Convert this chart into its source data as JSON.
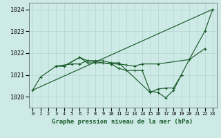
{
  "title": "Graphe pression niveau de la mer (hPa)",
  "bg_color": "#ceeae6",
  "grid_color": "#b8d8d4",
  "line_color": "#1a5c2a",
  "x_labels": [
    "0",
    "1",
    "2",
    "3",
    "4",
    "5",
    "6",
    "7",
    "8",
    "9",
    "10",
    "11",
    "12",
    "13",
    "14",
    "15",
    "16",
    "17",
    "18",
    "19",
    "20",
    "21",
    "22",
    "23"
  ],
  "ylim": [
    1019.5,
    1024.3
  ],
  "yticks": [
    1020,
    1021,
    1022,
    1023,
    1024
  ],
  "hours_line1": [
    0,
    1,
    3,
    4,
    6,
    7,
    10,
    11,
    12,
    13,
    14,
    16,
    20,
    22,
    23
  ],
  "vals_line1": [
    1020.3,
    1020.9,
    1021.4,
    1021.4,
    1021.8,
    1021.65,
    1021.5,
    1021.5,
    1021.45,
    1021.4,
    1021.5,
    1021.5,
    1021.7,
    1023.0,
    1024.0
  ],
  "hours_line2": [
    3,
    4,
    6,
    7,
    8,
    9,
    10,
    11,
    12,
    13,
    14,
    15,
    16,
    17,
    18,
    19
  ],
  "vals_line2": [
    1021.4,
    1021.4,
    1021.8,
    1021.55,
    1021.55,
    1021.55,
    1021.5,
    1021.3,
    1021.2,
    1021.2,
    1021.2,
    1020.25,
    1020.2,
    1019.95,
    1020.3,
    1021.0
  ],
  "hours_line3": [
    0,
    23
  ],
  "vals_line3": [
    1020.3,
    1024.0
  ],
  "hours_line4": [
    3,
    5,
    6,
    7,
    8,
    9,
    10,
    11,
    15,
    16,
    17,
    18,
    19,
    20,
    22
  ],
  "vals_line4": [
    1021.4,
    1021.5,
    1021.5,
    1021.65,
    1021.65,
    1021.65,
    1021.55,
    1021.55,
    1020.2,
    1020.35,
    1020.4,
    1020.4,
    1021.0,
    1021.7,
    1022.2
  ]
}
